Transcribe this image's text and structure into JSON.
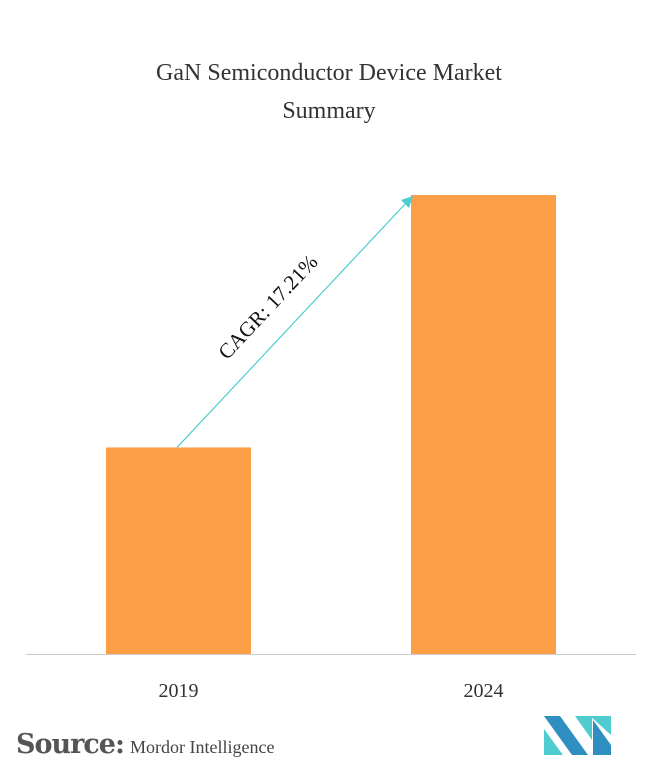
{
  "chart_data": {
    "type": "bar",
    "title": "GaN Semiconductor Device Market Summary",
    "categories": [
      "2019",
      "2024"
    ],
    "values": [
      0.45,
      1.0
    ],
    "annotation": "CAGR: 17.21%",
    "xlabel": "",
    "ylabel": "",
    "grid": false,
    "colors": {
      "bar": "#FD9F46",
      "arrow": "#4ECCD0",
      "axis": "#CCCCCC"
    }
  },
  "footer": {
    "source_label": "Source:",
    "source_name": "Mordor Intelligence",
    "logo_colors": [
      "#2E8FC0",
      "#4ECCD0"
    ]
  }
}
